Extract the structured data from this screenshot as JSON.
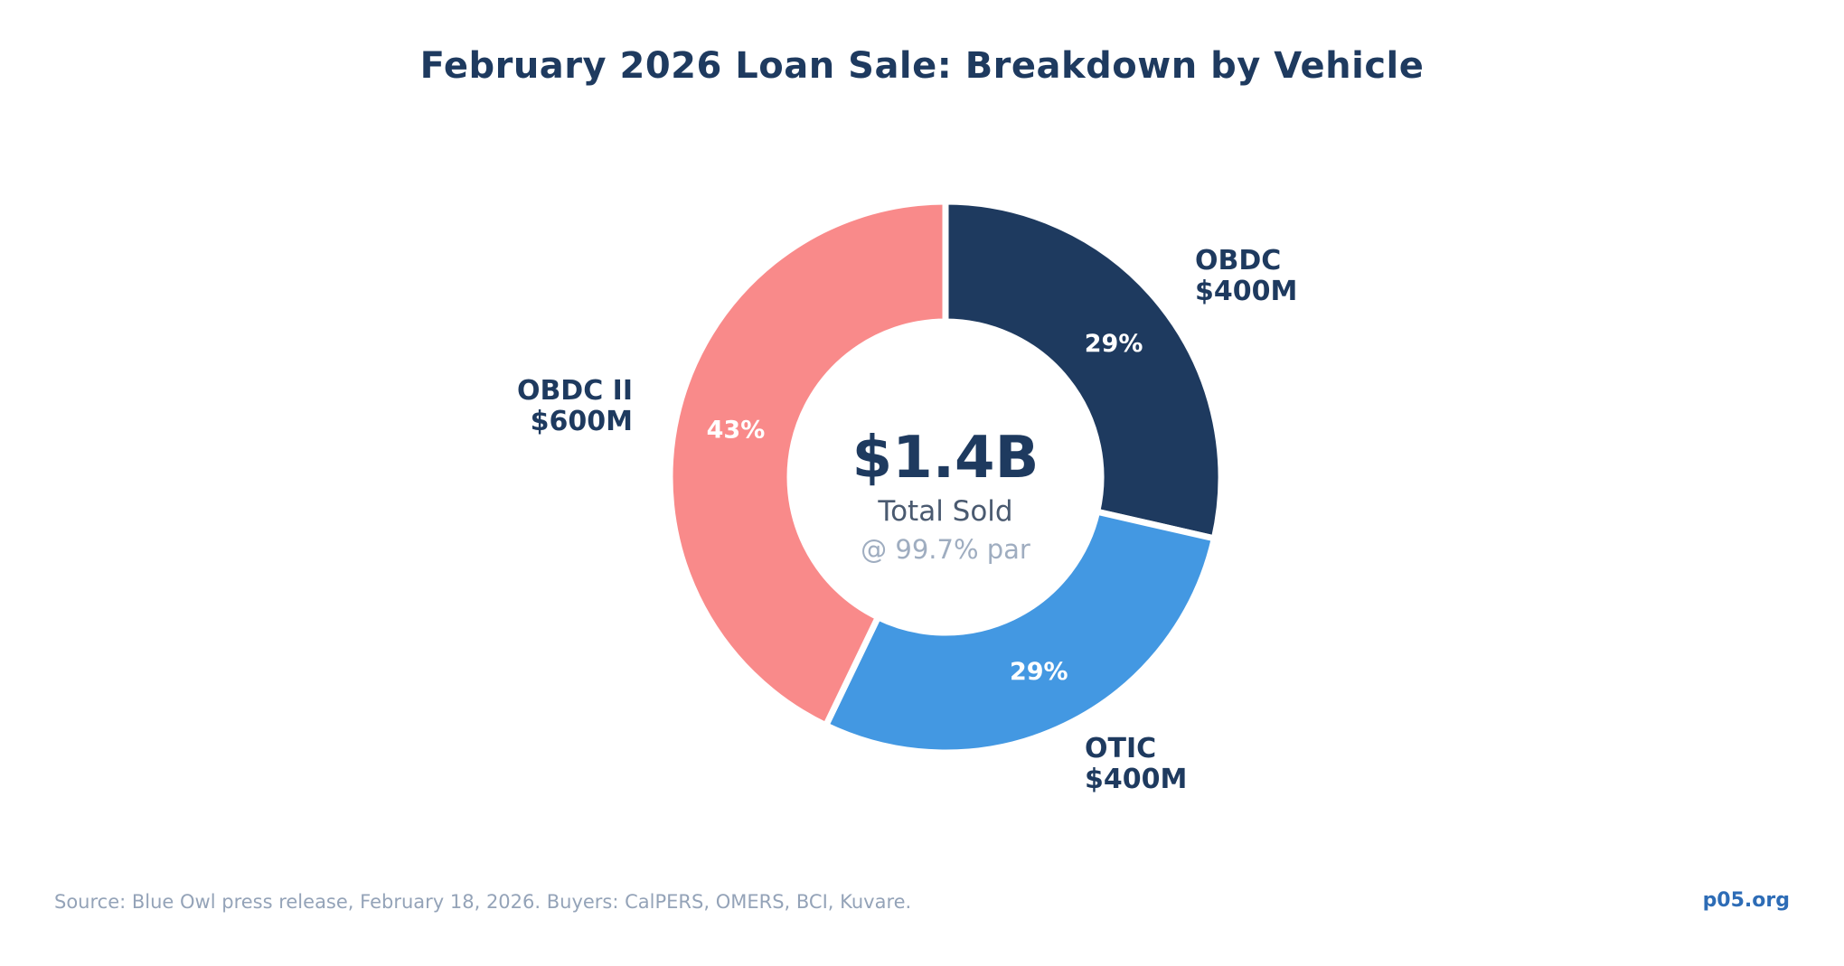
{
  "title": "February 2026 Loan Sale: Breakdown by Vehicle",
  "chart_data": {
    "type": "pie",
    "subtype": "donut",
    "title": "February 2026 Loan Sale: Breakdown by Vehicle",
    "direction": "clockwise",
    "start_angle_deg": 0,
    "total_value_millions": 1400,
    "segments": [
      {
        "name": "OBDC",
        "amount_label": "$400M",
        "value": 400,
        "percent_label": "29%",
        "color": "#1e3a5f"
      },
      {
        "name": "OTIC",
        "amount_label": "$400M",
        "value": 400,
        "percent_label": "29%",
        "color": "#4398e2"
      },
      {
        "name": "OBDC II",
        "amount_label": "$600M",
        "value": 600,
        "percent_label": "43%",
        "color": "#f98a8a"
      }
    ],
    "center": {
      "value": "$1.4B",
      "label": "Total Sold",
      "sublabel": "@ 99.7% par"
    },
    "legend_position": "outside-labels",
    "grid": false
  },
  "footer": {
    "source": "Source: Blue Owl press release, February 18, 2026. Buyers: CalPERS, OMERS, BCI, Kuvare.",
    "brand": "p05.org"
  },
  "colors": {
    "background": "#ffffff",
    "title_text": "#1e3a5f",
    "segment_navy": "#1e3a5f",
    "segment_blue": "#4398e2",
    "segment_salmon": "#f98a8a",
    "percent_text": "#ffffff",
    "center_label_text": "#4a5a70",
    "muted_text": "#9fadc0",
    "footer_text": "#94a3b8",
    "brand_text": "#2d6cb6",
    "separator": "#ffffff"
  }
}
